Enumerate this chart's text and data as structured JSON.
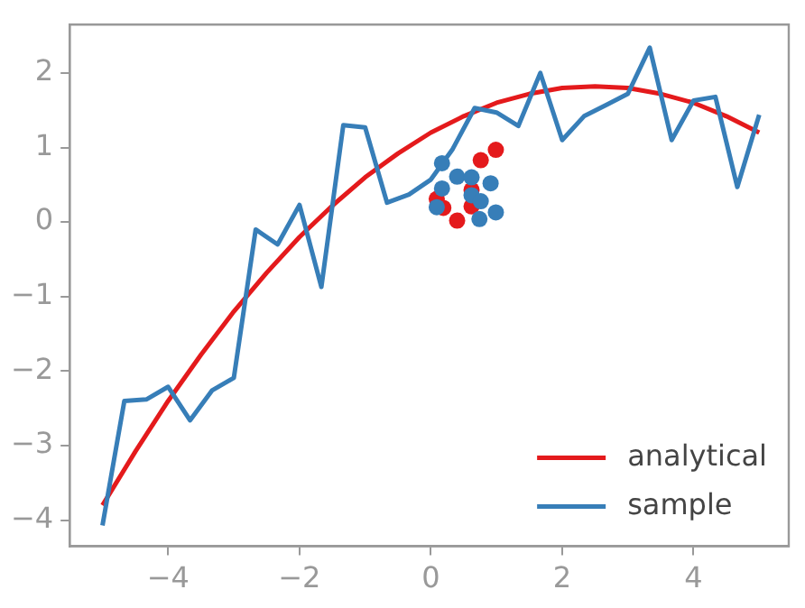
{
  "chart_data": {
    "type": "line",
    "xlim": [
      -5.5,
      5.45
    ],
    "ylim": [
      -4.35,
      2.65
    ],
    "xticks": [
      {
        "value": -4,
        "label": "−4"
      },
      {
        "value": -2,
        "label": "−2"
      },
      0,
      2,
      4
    ],
    "yticks": [
      {
        "value": -4,
        "label": "−4"
      },
      {
        "value": -3,
        "label": "−3"
      },
      {
        "value": -2,
        "label": "−2"
      },
      {
        "value": -1,
        "label": "−1"
      },
      0,
      1,
      2
    ],
    "grid": false,
    "legend": "bottom right",
    "line_style": "solid",
    "series": [
      {
        "name": "analytical",
        "color": "#e41a1c",
        "marker": "none",
        "x": [
          -5,
          -4.5,
          -4,
          -3.5,
          -3,
          -2.5,
          -2,
          -1.5,
          -1,
          -0.5,
          0,
          0.5,
          1,
          1.5,
          2,
          2.5,
          3,
          3.5,
          4,
          4.5,
          5
        ],
        "values": [
          -3.8,
          -3.08,
          -2.4,
          -1.78,
          -1.2,
          -0.68,
          -0.2,
          0.22,
          0.6,
          0.92,
          1.2,
          1.42,
          1.6,
          1.72,
          1.8,
          1.82,
          1.8,
          1.72,
          1.6,
          1.42,
          1.2
        ]
      },
      {
        "name": "sample",
        "color": "#377eb8",
        "marker": "none",
        "x": [
          -5,
          -4.667,
          -4.333,
          -4,
          -3.667,
          -3.333,
          -3,
          -2.667,
          -2.333,
          -2,
          -1.667,
          -1.333,
          -1,
          -0.667,
          -0.333,
          0,
          0.333,
          0.667,
          1,
          1.333,
          1.667,
          2,
          2.333,
          2.667,
          3,
          3.333,
          3.667,
          4,
          4.333,
          4.667,
          5
        ],
        "values": [
          -4.07,
          -2.4,
          -2.38,
          -2.21,
          -2.66,
          -2.26,
          -2.09,
          -0.1,
          -0.3,
          0.23,
          -0.87,
          1.3,
          1.27,
          0.26,
          0.37,
          0.57,
          0.98,
          1.53,
          1.47,
          1.29,
          2.0,
          1.1,
          1.42,
          1.57,
          1.72,
          2.34,
          1.1,
          1.63,
          1.68,
          0.47,
          1.44
        ]
      },
      {
        "type": "scatter",
        "color": "#e41a1c",
        "marker": "circle",
        "x": [
          0.99,
          0.76,
          0.09,
          0.19,
          0.4,
          0.62,
          0.62
        ],
        "values": [
          0.97,
          0.83,
          0.31,
          0.19,
          0.02,
          0.43,
          0.21
        ]
      },
      {
        "type": "scatter",
        "color": "#377eb8",
        "marker": "circle",
        "x": [
          0.17,
          0.4,
          0.62,
          0.91,
          0.17,
          0.62,
          0.76,
          0.09,
          0.74,
          0.99
        ],
        "values": [
          0.79,
          0.61,
          0.6,
          0.52,
          0.45,
          0.36,
          0.28,
          0.2,
          0.04,
          0.13
        ]
      }
    ]
  }
}
